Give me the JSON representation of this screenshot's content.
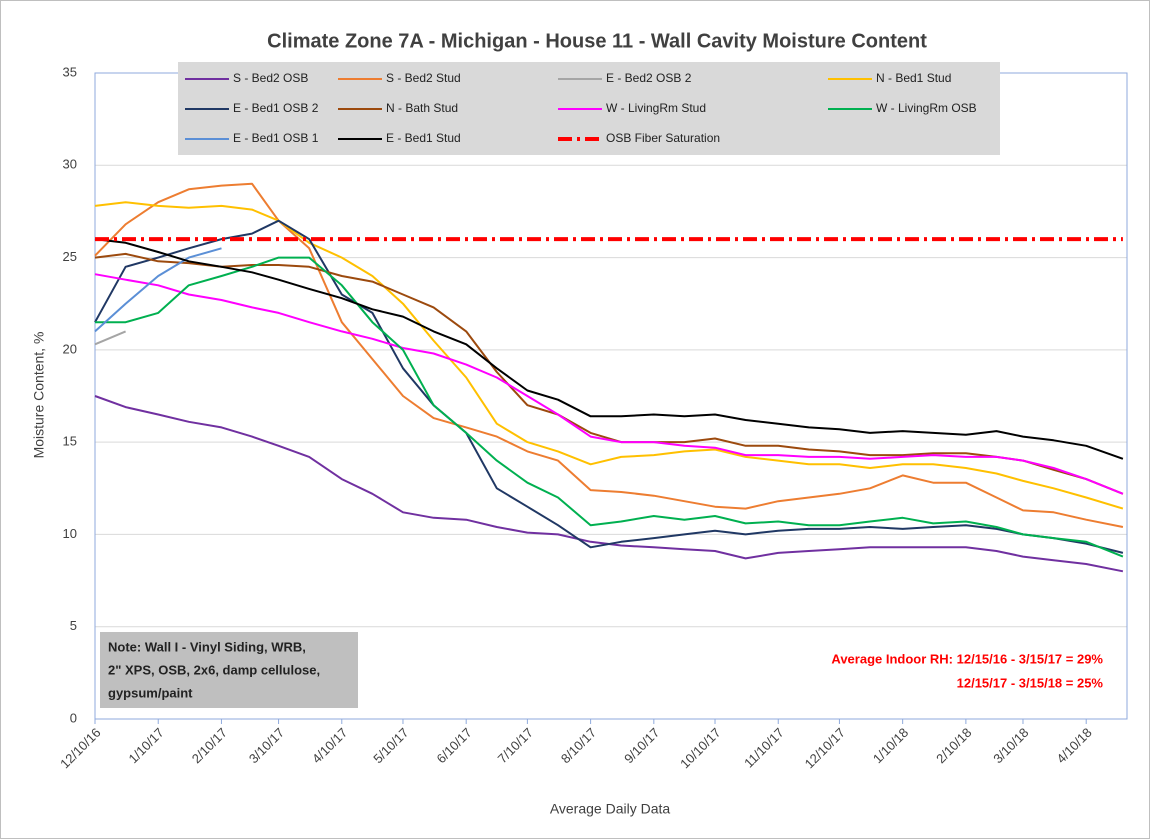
{
  "chart_data": {
    "type": "line",
    "title": "Climate Zone 7A - Michigan - House 11 - Wall Cavity Moisture Content",
    "x_label": "Average Daily Data",
    "y_label": "Moisture Content, %",
    "x": [
      "12/10/16",
      "12/25/16",
      "1/10/17",
      "1/25/17",
      "2/10/17",
      "2/25/17",
      "3/10/17",
      "3/25/17",
      "4/10/17",
      "4/25/17",
      "5/10/17",
      "5/25/17",
      "6/10/17",
      "6/25/17",
      "7/10/17",
      "7/25/17",
      "8/10/17",
      "8/25/17",
      "9/10/17",
      "9/25/17",
      "10/10/17",
      "10/25/17",
      "11/10/17",
      "11/25/17",
      "12/10/17",
      "12/25/17",
      "1/10/18",
      "1/25/18",
      "2/10/18",
      "2/25/18",
      "3/10/18",
      "3/25/18",
      "4/10/18",
      "4/28/18"
    ],
    "xlim": [
      "12/10/16",
      "4/30/18"
    ],
    "xticks": [
      "12/10/16",
      "1/10/17",
      "2/10/17",
      "3/10/17",
      "4/10/17",
      "5/10/17",
      "6/10/17",
      "7/10/17",
      "8/10/17",
      "9/10/17",
      "10/10/17",
      "11/10/17",
      "12/10/17",
      "1/10/18",
      "2/10/18",
      "3/10/18",
      "4/10/18"
    ],
    "ylim": [
      0,
      35
    ],
    "yticks": [
      0,
      5,
      10,
      15,
      20,
      25,
      30,
      35
    ],
    "grid": true,
    "legend_position": "top",
    "series": [
      {
        "name": "S - Bed2 OSB",
        "color": "#7030a0",
        "values": [
          17.5,
          16.9,
          16.5,
          16.1,
          15.8,
          15.3,
          14.8,
          14.2,
          13.0,
          12.2,
          11.2,
          10.9,
          10.8,
          10.4,
          10.1,
          10.0,
          9.6,
          9.4,
          9.3,
          9.2,
          9.1,
          8.7,
          9.0,
          9.1,
          9.2,
          9.3,
          9.3,
          9.3,
          9.3,
          9.1,
          8.8,
          8.6,
          8.4,
          8.0
        ]
      },
      {
        "name": "S - Bed2 Stud",
        "color": "#ed7d31",
        "values": [
          25.1,
          26.8,
          28.0,
          28.7,
          28.9,
          29.0,
          27.0,
          25.5,
          21.5,
          19.5,
          17.5,
          16.3,
          15.8,
          15.3,
          14.5,
          14.0,
          12.4,
          12.3,
          12.1,
          11.8,
          11.5,
          11.4,
          11.8,
          12.0,
          12.2,
          12.5,
          13.2,
          12.8,
          12.8,
          12.0,
          11.3,
          11.2,
          10.8,
          10.4
        ]
      },
      {
        "name": "E - Bed2 OSB 2",
        "color": "#a5a5a5",
        "values": [
          20.3,
          21.0,
          null,
          null,
          null,
          null,
          null,
          null,
          null,
          null,
          null,
          null,
          null,
          null,
          null,
          null,
          null,
          null,
          null,
          null,
          null,
          null,
          null,
          null,
          null,
          null,
          null,
          null,
          null,
          null,
          null,
          null,
          null,
          null
        ]
      },
      {
        "name": "N - Bed1 Stud",
        "color": "#ffc000",
        "values": [
          27.8,
          28.0,
          27.8,
          27.7,
          27.8,
          27.6,
          27.0,
          25.8,
          25.0,
          24.0,
          22.5,
          20.5,
          18.5,
          16.0,
          15.0,
          14.5,
          13.8,
          14.2,
          14.3,
          14.5,
          14.6,
          14.2,
          14.0,
          13.8,
          13.8,
          13.6,
          13.8,
          13.8,
          13.6,
          13.3,
          12.9,
          12.5,
          12.0,
          11.4
        ]
      },
      {
        "name": "E - Bed1 OSB 2",
        "color": "#203864",
        "values": [
          21.5,
          24.5,
          25.0,
          25.5,
          26.0,
          26.3,
          27.0,
          26.0,
          23.0,
          22.0,
          19.0,
          17.0,
          15.5,
          12.5,
          11.5,
          10.5,
          9.3,
          9.6,
          9.8,
          10.0,
          10.2,
          10.0,
          10.2,
          10.3,
          10.3,
          10.4,
          10.3,
          10.4,
          10.5,
          10.3,
          10.0,
          9.8,
          9.5,
          9.0
        ]
      },
      {
        "name": "N - Bath Stud",
        "color": "#9c4a0e",
        "values": [
          25.0,
          25.2,
          24.8,
          24.7,
          24.5,
          24.6,
          24.6,
          24.5,
          24.0,
          23.7,
          23.0,
          22.3,
          21.0,
          18.8,
          17.0,
          16.5,
          15.5,
          15.0,
          15.0,
          15.0,
          15.2,
          14.8,
          14.8,
          14.6,
          14.5,
          14.3,
          14.3,
          14.4,
          14.4,
          14.2,
          14.0,
          13.5,
          13.0,
          12.2
        ]
      },
      {
        "name": "W - LivingRm Stud",
        "color": "#ff00ff",
        "values": [
          24.1,
          23.8,
          23.5,
          23.0,
          22.7,
          22.3,
          22.0,
          21.5,
          21.0,
          20.6,
          20.1,
          19.8,
          19.2,
          18.5,
          17.5,
          16.5,
          15.3,
          15.0,
          15.0,
          14.8,
          14.7,
          14.3,
          14.3,
          14.2,
          14.2,
          14.1,
          14.2,
          14.3,
          14.2,
          14.2,
          14.0,
          13.6,
          13.0,
          12.2
        ]
      },
      {
        "name": "W - LivingRm OSB",
        "color": "#00b050",
        "values": [
          21.5,
          21.5,
          22.0,
          23.5,
          24.0,
          24.5,
          25.0,
          25.0,
          23.5,
          21.5,
          20.0,
          17.0,
          15.5,
          14.0,
          12.8,
          12.0,
          10.5,
          10.7,
          11.0,
          10.8,
          11.0,
          10.6,
          10.7,
          10.5,
          10.5,
          10.7,
          10.9,
          10.6,
          10.7,
          10.4,
          10.0,
          9.8,
          9.6,
          8.8
        ]
      },
      {
        "name": "E - Bed1 OSB 1",
        "color": "#5b8fd6",
        "values": [
          21.0,
          22.5,
          24.0,
          25.0,
          25.5,
          null,
          null,
          null,
          null,
          null,
          null,
          null,
          null,
          null,
          null,
          null,
          null,
          null,
          null,
          null,
          null,
          null,
          null,
          null,
          null,
          null,
          null,
          null,
          null,
          null,
          null,
          null,
          null,
          null
        ]
      },
      {
        "name": "E - Bed1 Stud",
        "color": "#000000",
        "values": [
          26.0,
          25.8,
          25.3,
          24.8,
          24.5,
          24.2,
          23.8,
          23.3,
          22.8,
          22.2,
          21.8,
          21.0,
          20.3,
          19.0,
          17.8,
          17.3,
          16.4,
          16.4,
          16.5,
          16.4,
          16.5,
          16.2,
          16.0,
          15.8,
          15.7,
          15.5,
          15.6,
          15.5,
          15.4,
          15.6,
          15.3,
          15.1,
          14.8,
          14.1
        ]
      },
      {
        "name": "OSB Fiber Saturation",
        "color": "#ff0000",
        "line_style": "dash-dot",
        "values": [
          26,
          26,
          26,
          26,
          26,
          26,
          26,
          26,
          26,
          26,
          26,
          26,
          26,
          26,
          26,
          26,
          26,
          26,
          26,
          26,
          26,
          26,
          26,
          26,
          26,
          26,
          26,
          26,
          26,
          26,
          26,
          26,
          26,
          26
        ]
      }
    ],
    "note": [
      "Note: Wall I - Vinyl Siding, WRB,",
      "2\" XPS, OSB, 2x6, damp cellulose,",
      "gypsum/paint"
    ],
    "rh_annotation": [
      "Average Indoor RH: 12/15/16 - 3/15/17 = 29%",
      "12/15/17 - 3/15/18 = 25%"
    ]
  }
}
